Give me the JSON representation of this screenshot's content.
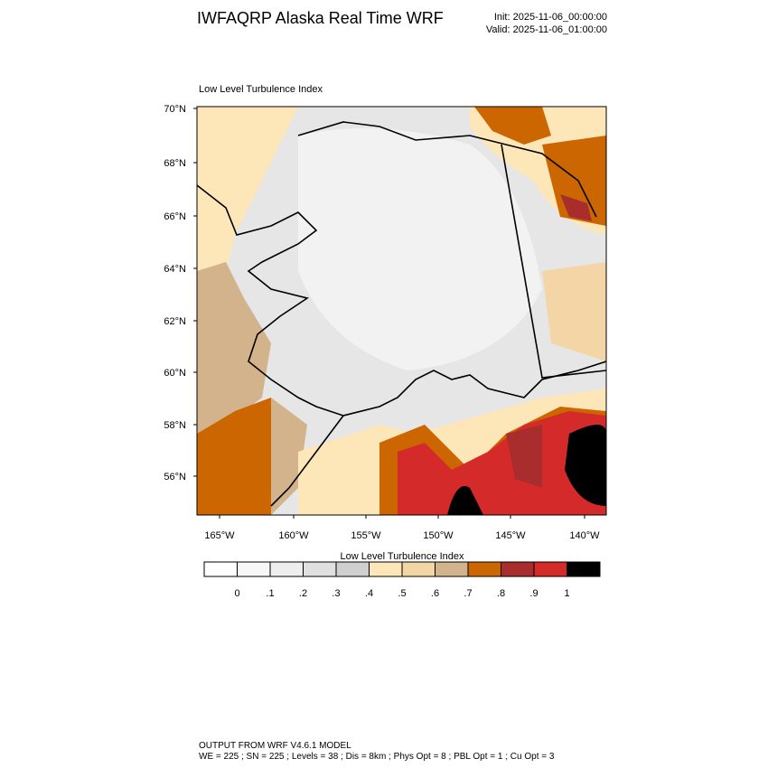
{
  "header": {
    "title": "IWFAQRP Alaska Real Time WRF",
    "init": "Init: 2025-11-06_00:00:00",
    "valid": "Valid: 2025-11-06_01:00:00"
  },
  "map": {
    "title": "Low Level Turbulence Index",
    "lat_labels": [
      "70°N",
      "68°N",
      "66°N",
      "64°N",
      "62°N",
      "60°N",
      "58°N",
      "56°N"
    ],
    "lon_labels": [
      "165°W",
      "160°W",
      "155°W",
      "150°W",
      "145°W",
      "140°W"
    ]
  },
  "colorbar": {
    "title": "Low Level Turbulence Index",
    "colors": [
      "#ffffff",
      "#f7f7f7",
      "#eeeeee",
      "#e0e0e0",
      "#cfcfcf",
      "#fde6b8",
      "#f4d5a6",
      "#d2b38b",
      "#cc6600",
      "#a92d2d",
      "#d52a2a",
      "#000000"
    ],
    "labels": [
      "0",
      ".1",
      ".2",
      ".3",
      ".4",
      ".5",
      ".6",
      ".7",
      ".8",
      ".9",
      "1"
    ]
  },
  "footer": {
    "lines": [
      "OUTPUT FROM WRF V4.6.1 MODEL",
      "WE = 225 ; SN = 225 ; Levels = 38 ; Dis = 8km ; Phys Opt = 8 ; PBL Opt = 1 ; Cu Opt = 3"
    ]
  }
}
